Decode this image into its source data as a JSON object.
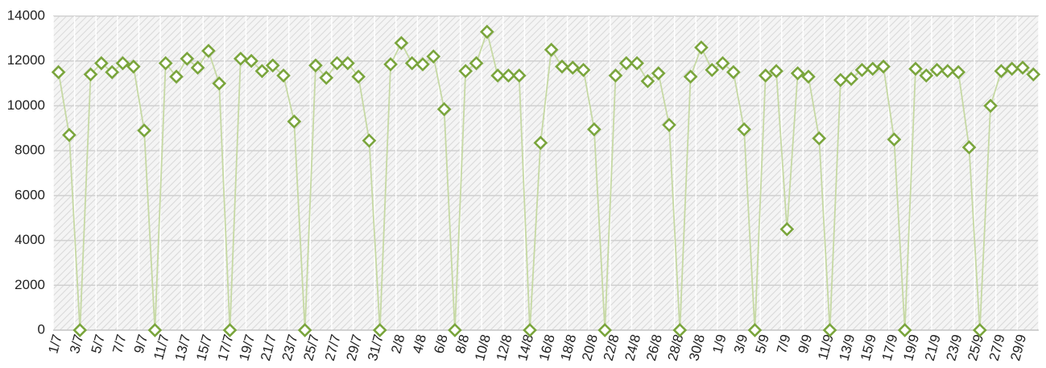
{
  "chart_data": {
    "type": "line",
    "categories": [
      "1/7",
      null,
      "3/7",
      null,
      "5/7",
      null,
      "7/7",
      null,
      "9/7",
      null,
      "11/7",
      null,
      "13/7",
      null,
      "15/7",
      null,
      "17/7",
      null,
      "19/7",
      null,
      "21/7",
      null,
      "23/7",
      null,
      "25/7",
      null,
      "27/7",
      null,
      "29/7",
      null,
      "31/7",
      null,
      "2/8",
      null,
      "4/8",
      null,
      "6/8",
      null,
      "8/8",
      null,
      "10/8",
      null,
      "12/8",
      null,
      "14/8",
      null,
      "16/8",
      null,
      "18/8",
      null,
      "20/8",
      null,
      "22/8",
      null,
      "24/8",
      null,
      "26/8",
      null,
      "28/8",
      null,
      "30/8",
      null,
      "1/9",
      null,
      "3/9",
      null,
      "5/9",
      null,
      "7/9",
      null,
      "9/9",
      null,
      "11/9",
      null,
      "13/9",
      null,
      "15/9",
      null,
      "17/9",
      null,
      "19/9",
      null,
      "21/9",
      null,
      "23/9",
      null,
      "25/9",
      null,
      "27/9",
      null,
      "29/9",
      null
    ],
    "values": [
      11500,
      8700,
      0,
      11400,
      11900,
      11500,
      11900,
      11750,
      8900,
      0,
      11900,
      11300,
      12100,
      11700,
      12450,
      11000,
      0,
      12100,
      12000,
      11550,
      11800,
      11350,
      9300,
      0,
      11800,
      11250,
      11900,
      11900,
      11300,
      8450,
      0,
      11850,
      12800,
      11900,
      11850,
      12200,
      9850,
      0,
      11550,
      11900,
      13300,
      11350,
      11350,
      11350,
      0,
      8350,
      12500,
      11750,
      11700,
      11600,
      8950,
      0,
      11350,
      11900,
      11900,
      11100,
      11450,
      9150,
      0,
      11300,
      12600,
      11600,
      11900,
      11500,
      8950,
      0,
      11350,
      11550,
      4500,
      11450,
      11300,
      8550,
      0,
      11150,
      11200,
      11600,
      11650,
      11750,
      8500,
      0,
      11650,
      11350,
      11600,
      11550,
      11500,
      8150,
      0,
      10000,
      11550,
      11650,
      11700,
      11400
    ],
    "color": "#c6d9a4",
    "marker_color": "#7aa53c",
    "ylim": [
      0,
      14000
    ],
    "yticks": [
      0,
      2000,
      4000,
      6000,
      8000,
      10000,
      12000,
      14000
    ],
    "grid": true
  }
}
